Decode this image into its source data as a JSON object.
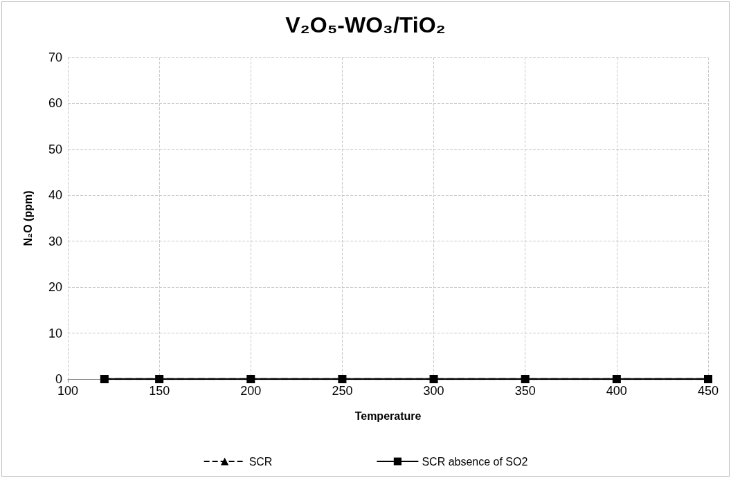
{
  "chart_data": {
    "type": "line",
    "title": "V₂O₅-WO₃/TiO₂",
    "xlabel": "Temperature",
    "ylabel": "N₂O (ppm)",
    "x": [
      120,
      150,
      200,
      250,
      300,
      350,
      400,
      450
    ],
    "series": [
      {
        "name": "SCR",
        "color": "#000000",
        "marker": "triangle",
        "line_style": "dashed",
        "values": [
          0,
          0,
          0,
          0,
          0,
          0,
          0,
          0
        ]
      },
      {
        "name": "SCR absence of SO2",
        "color": "#000000",
        "marker": "square",
        "line_style": "solid",
        "values": [
          0,
          0,
          0,
          0,
          0,
          0,
          0,
          0
        ]
      }
    ],
    "xlim": [
      100,
      450
    ],
    "xticks": [
      100,
      150,
      200,
      250,
      300,
      350,
      400,
      450
    ],
    "ylim": [
      0,
      70
    ],
    "yticks": [
      0,
      10,
      20,
      30,
      40,
      50,
      60,
      70
    ],
    "grid": true,
    "legend": "bottom"
  }
}
